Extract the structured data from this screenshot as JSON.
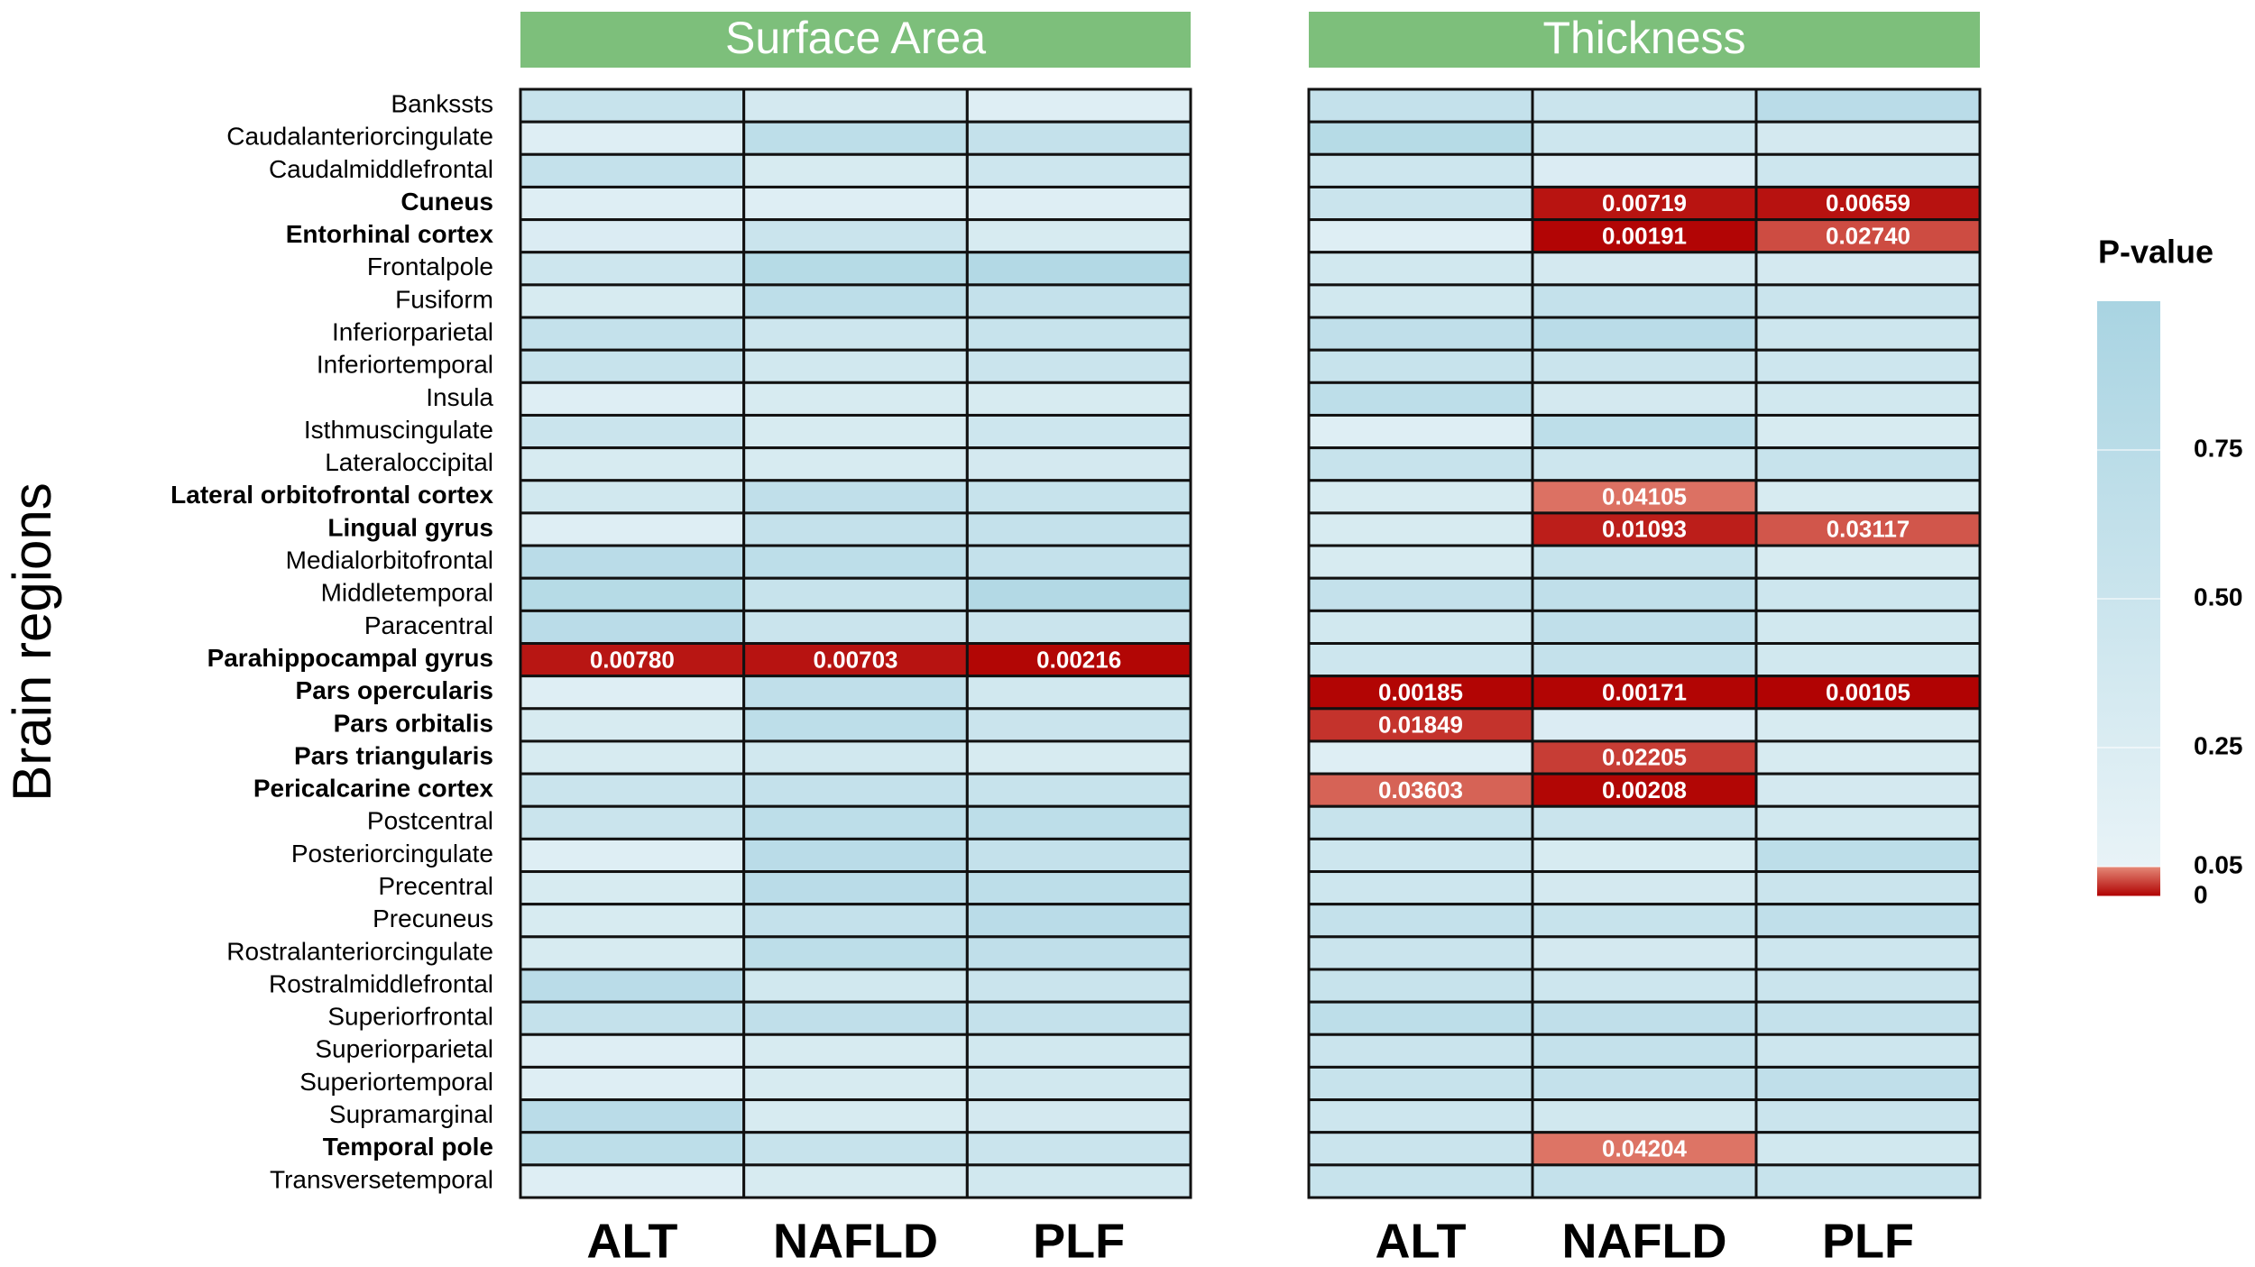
{
  "chart_data": [
    {
      "type": "heatmap",
      "title": "Surface Area",
      "ylabel": "Brain regions",
      "x_categories": [
        "ALT",
        "NAFLD",
        "PLF"
      ],
      "y_categories": [
        "Bankssts",
        "Caudalanteriorcingulate",
        "Caudalmiddlefrontal",
        "Cuneus",
        "Entorhinal cortex",
        "Frontalpole",
        "Fusiform",
        "Inferiorparietal",
        "Inferiortemporal",
        "Insula",
        "Isthmuscingulate",
        "Lateraloccipital",
        "Lateral orbitofrontal cortex",
        "Lingual gyrus",
        "Medialorbitofrontal",
        "Middletemporal",
        "Paracentral",
        "Parahippocampal gyrus",
        "Pars opercularis",
        "Pars orbitalis",
        "Pars triangularis",
        "Pericalcarine cortex",
        "Postcentral",
        "Posteriorcingulate",
        "Precentral",
        "Precuneus",
        "Rostralanteriorcingulate",
        "Rostralmiddlefrontal",
        "Superiorfrontal",
        "Superiorparietal",
        "Superiortemporal",
        "Supramarginal",
        "Temporal pole",
        "Transversetemporal"
      ],
      "values": [
        [
          0.55,
          0.35,
          0.2
        ],
        [
          0.2,
          0.7,
          0.6
        ],
        [
          0.6,
          0.3,
          0.45
        ],
        [
          0.2,
          0.2,
          0.2
        ],
        [
          0.25,
          0.5,
          0.3
        ],
        [
          0.45,
          0.8,
          0.85
        ],
        [
          0.3,
          0.7,
          0.6
        ],
        [
          0.6,
          0.45,
          0.55
        ],
        [
          0.55,
          0.4,
          0.5
        ],
        [
          0.2,
          0.3,
          0.3
        ],
        [
          0.5,
          0.3,
          0.45
        ],
        [
          0.3,
          0.3,
          0.35
        ],
        [
          0.4,
          0.65,
          0.55
        ],
        [
          0.2,
          0.6,
          0.6
        ],
        [
          0.75,
          0.7,
          0.6
        ],
        [
          0.8,
          0.55,
          0.85
        ],
        [
          0.75,
          0.5,
          0.5
        ],
        [
          0.0078,
          0.00703,
          0.00216
        ],
        [
          0.2,
          0.65,
          0.4
        ],
        [
          0.3,
          0.7,
          0.5
        ],
        [
          0.3,
          0.4,
          0.3
        ],
        [
          0.5,
          0.6,
          0.55
        ],
        [
          0.5,
          0.7,
          0.7
        ],
        [
          0.2,
          0.75,
          0.6
        ],
        [
          0.3,
          0.75,
          0.7
        ],
        [
          0.3,
          0.6,
          0.75
        ],
        [
          0.3,
          0.7,
          0.65
        ],
        [
          0.75,
          0.4,
          0.5
        ],
        [
          0.6,
          0.65,
          0.6
        ],
        [
          0.2,
          0.3,
          0.4
        ],
        [
          0.2,
          0.3,
          0.4
        ],
        [
          0.75,
          0.3,
          0.35
        ],
        [
          0.7,
          0.55,
          0.5
        ],
        [
          0.2,
          0.3,
          0.4
        ]
      ],
      "value_labels": [
        [
          null,
          null,
          null
        ],
        [
          null,
          null,
          null
        ],
        [
          null,
          null,
          null
        ],
        [
          null,
          null,
          null
        ],
        [
          null,
          null,
          null
        ],
        [
          null,
          null,
          null
        ],
        [
          null,
          null,
          null
        ],
        [
          null,
          null,
          null
        ],
        [
          null,
          null,
          null
        ],
        [
          null,
          null,
          null
        ],
        [
          null,
          null,
          null
        ],
        [
          null,
          null,
          null
        ],
        [
          null,
          null,
          null
        ],
        [
          null,
          null,
          null
        ],
        [
          null,
          null,
          null
        ],
        [
          null,
          null,
          null
        ],
        [
          null,
          null,
          null
        ],
        [
          "0.00780",
          "0.00703",
          "0.00216"
        ],
        [
          null,
          null,
          null
        ],
        [
          null,
          null,
          null
        ],
        [
          null,
          null,
          null
        ],
        [
          null,
          null,
          null
        ],
        [
          null,
          null,
          null
        ],
        [
          null,
          null,
          null
        ],
        [
          null,
          null,
          null
        ],
        [
          null,
          null,
          null
        ],
        [
          null,
          null,
          null
        ],
        [
          null,
          null,
          null
        ],
        [
          null,
          null,
          null
        ],
        [
          null,
          null,
          null
        ],
        [
          null,
          null,
          null
        ],
        [
          null,
          null,
          null
        ],
        [
          null,
          null,
          null
        ],
        [
          null,
          null,
          null
        ]
      ],
      "colorscale": [
        {
          "value": 0,
          "color": "#b00000"
        },
        {
          "value": 0.05,
          "color": "#e58a78"
        },
        {
          "value": 0.05,
          "color": "#e8f3f7"
        },
        {
          "value": 1,
          "color": "#a9d4e2"
        }
      ]
    },
    {
      "type": "heatmap",
      "title": "Thickness",
      "x_categories": [
        "ALT",
        "NAFLD",
        "PLF"
      ],
      "values": [
        [
          0.6,
          0.5,
          0.75
        ],
        [
          0.8,
          0.45,
          0.35
        ],
        [
          0.45,
          0.25,
          0.45
        ],
        [
          0.5,
          0.00719,
          0.00659
        ],
        [
          0.2,
          0.00191,
          0.0274
        ],
        [
          0.4,
          0.35,
          0.35
        ],
        [
          0.4,
          0.6,
          0.5
        ],
        [
          0.65,
          0.75,
          0.45
        ],
        [
          0.55,
          0.5,
          0.45
        ],
        [
          0.7,
          0.35,
          0.4
        ],
        [
          0.2,
          0.7,
          0.3
        ],
        [
          0.55,
          0.45,
          0.55
        ],
        [
          0.3,
          0.04105,
          0.3
        ],
        [
          0.3,
          0.01093,
          0.03117
        ],
        [
          0.3,
          0.55,
          0.3
        ],
        [
          0.6,
          0.65,
          0.45
        ],
        [
          0.4,
          0.65,
          0.4
        ],
        [
          0.45,
          0.6,
          0.4
        ],
        [
          0.00185,
          0.00171,
          0.00105
        ],
        [
          0.01849,
          0.25,
          0.3
        ],
        [
          0.2,
          0.02205,
          0.3
        ],
        [
          0.03603,
          0.00208,
          0.35
        ],
        [
          0.55,
          0.5,
          0.4
        ],
        [
          0.45,
          0.3,
          0.7
        ],
        [
          0.45,
          0.35,
          0.5
        ],
        [
          0.6,
          0.55,
          0.65
        ],
        [
          0.5,
          0.35,
          0.45
        ],
        [
          0.55,
          0.45,
          0.5
        ],
        [
          0.7,
          0.65,
          0.6
        ],
        [
          0.5,
          0.6,
          0.45
        ],
        [
          0.55,
          0.6,
          0.65
        ],
        [
          0.45,
          0.4,
          0.5
        ],
        [
          0.5,
          0.04204,
          0.4
        ],
        [
          0.55,
          0.6,
          0.55
        ]
      ],
      "value_labels": [
        [
          null,
          null,
          null
        ],
        [
          null,
          null,
          null
        ],
        [
          null,
          null,
          null
        ],
        [
          null,
          "0.00719",
          "0.00659"
        ],
        [
          null,
          "0.00191",
          "0.02740"
        ],
        [
          null,
          null,
          null
        ],
        [
          null,
          null,
          null
        ],
        [
          null,
          null,
          null
        ],
        [
          null,
          null,
          null
        ],
        [
          null,
          null,
          null
        ],
        [
          null,
          null,
          null
        ],
        [
          null,
          null,
          null
        ],
        [
          null,
          "0.04105",
          null
        ],
        [
          null,
          "0.01093",
          "0.03117"
        ],
        [
          null,
          null,
          null
        ],
        [
          null,
          null,
          null
        ],
        [
          null,
          null,
          null
        ],
        [
          null,
          null,
          null
        ],
        [
          "0.00185",
          "0.00171",
          "0.00105"
        ],
        [
          "0.01849",
          null,
          null
        ],
        [
          null,
          "0.02205",
          null
        ],
        [
          "0.03603",
          "0.00208",
          null
        ],
        [
          null,
          null,
          null
        ],
        [
          null,
          null,
          null
        ],
        [
          null,
          null,
          null
        ],
        [
          null,
          null,
          null
        ],
        [
          null,
          null,
          null
        ],
        [
          null,
          null,
          null
        ],
        [
          null,
          null,
          null
        ],
        [
          null,
          null,
          null
        ],
        [
          null,
          null,
          null
        ],
        [
          null,
          null,
          null
        ],
        [
          null,
          "0.04204",
          null
        ],
        [
          null,
          null,
          null
        ]
      ],
      "colorscale": [
        {
          "value": 0,
          "color": "#b00000"
        },
        {
          "value": 0.05,
          "color": "#e58a78"
        },
        {
          "value": 0.05,
          "color": "#e8f3f7"
        },
        {
          "value": 1,
          "color": "#a9d4e2"
        }
      ],
      "colorbar_title": "P-value",
      "clim": [
        0,
        1
      ],
      "cticks": [
        0,
        0.05,
        0.25,
        {
          "value": 0.5,
          "label": "0.50"
        },
        0.75
      ],
      "title_color": "#7dbf7b"
    }
  ]
}
